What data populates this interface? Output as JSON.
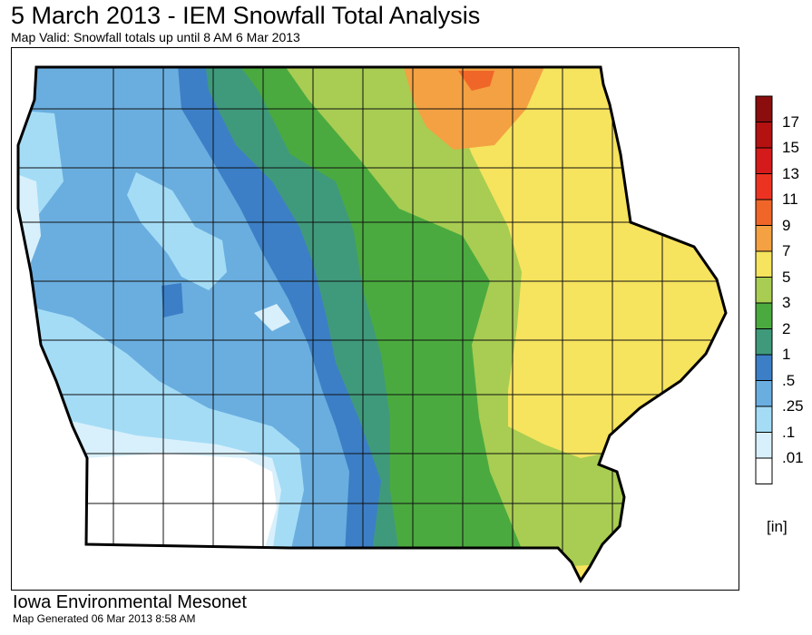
{
  "header": {
    "title": "5 March 2013 - IEM Snowfall Total Analysis",
    "subtitle": "Map Valid: Snowfall totals up until 8 AM 6 Mar 2013"
  },
  "legend": {
    "units": "[in]",
    "bins": [
      {
        "label": "",
        "color": "#8b0d0d"
      },
      {
        "label": "17",
        "color": "#b41111"
      },
      {
        "label": "15",
        "color": "#d41a1a"
      },
      {
        "label": "13",
        "color": "#ec3322"
      },
      {
        "label": "11",
        "color": "#f06628"
      },
      {
        "label": "9",
        "color": "#f3a142"
      },
      {
        "label": "7",
        "color": "#f6e35e"
      },
      {
        "label": "5",
        "color": "#a8cd52"
      },
      {
        "label": "3",
        "color": "#4baa3f"
      },
      {
        "label": "2",
        "color": "#3f9a7b"
      },
      {
        "label": "1",
        "color": "#3c7fc6"
      },
      {
        "label": ".5",
        "color": "#6aaee0"
      },
      {
        "label": ".25",
        "color": "#a4dcf6"
      },
      {
        "label": ".1",
        "color": "#d8f0fb"
      },
      {
        "label": ".01",
        "color": "#ffffff"
      }
    ]
  },
  "footer": {
    "title": "Iowa Environmental Mesonet",
    "generated": "Map Generated 06 Mar 2013 8:58 AM"
  }
}
